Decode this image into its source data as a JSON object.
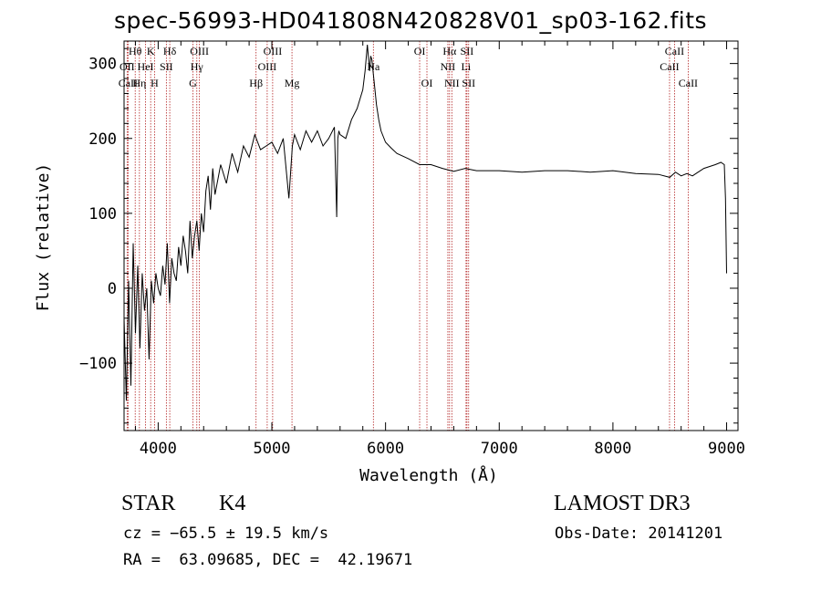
{
  "title": "spec-56993-HD041808N420828V01_sp03-162.fits",
  "info": {
    "object_type": "STAR",
    "subclass": "K4",
    "survey": "LAMOST DR3",
    "redshift": "cz = −65.5 ± 19.5 km/s",
    "obs_date": "Obs-Date: 20141201",
    "coords": "RA =  63.09685, DEC =  42.19671"
  },
  "colors": {
    "line": "#000000",
    "marker": "#b22222",
    "background": "#ffffff"
  },
  "chart_data": {
    "type": "line",
    "title": "spec-56993-HD041808N420828V01_sp03-162.fits",
    "xlabel": "Wavelength (Å)",
    "ylabel": "Flux (relative)",
    "xlim": [
      3700,
      9100
    ],
    "ylim": [
      -190,
      330
    ],
    "xticks": [
      4000,
      5000,
      6000,
      7000,
      8000,
      9000
    ],
    "yticks": [
      -100,
      0,
      100,
      200,
      300
    ],
    "ytick_labels": [
      "−100",
      "0",
      "100",
      "200",
      "300"
    ],
    "grid": false,
    "series": [
      {
        "x": [
          3700,
          3720,
          3740,
          3760,
          3780,
          3800,
          3820,
          3840,
          3860,
          3880,
          3900,
          3920,
          3940,
          3960,
          3980,
          4000,
          4020,
          4040,
          4060,
          4080,
          4100,
          4120,
          4140,
          4160,
          4180,
          4200,
          4220,
          4240,
          4260,
          4280,
          4300,
          4320,
          4340,
          4360,
          4380,
          4400,
          4420,
          4440,
          4460,
          4480,
          4500,
          4550,
          4600,
          4650,
          4700,
          4750,
          4800,
          4850,
          4900,
          4950,
          5000,
          5050,
          5100,
          5150,
          5180,
          5200,
          5250,
          5300,
          5350,
          5400,
          5450,
          5500,
          5550,
          5570,
          5580,
          5590,
          5600,
          5650,
          5700,
          5750,
          5800,
          5820,
          5840,
          5860,
          5870,
          5880,
          5890,
          5900,
          5920,
          5940,
          5960,
          6000,
          6050,
          6100,
          6200,
          6300,
          6400,
          6500,
          6600,
          6700,
          6800,
          6900,
          7000,
          7200,
          7400,
          7600,
          7800,
          8000,
          8200,
          8400,
          8500,
          8550,
          8600,
          8650,
          8700,
          8800,
          8900,
          8950,
          8980,
          8990,
          9000
        ],
        "y": [
          -40,
          -150,
          10,
          -130,
          60,
          -60,
          30,
          -80,
          20,
          -30,
          0,
          -95,
          10,
          -20,
          20,
          0,
          -10,
          30,
          5,
          60,
          -20,
          40,
          20,
          10,
          55,
          30,
          70,
          50,
          20,
          90,
          40,
          70,
          90,
          50,
          100,
          75,
          130,
          150,
          105,
          160,
          125,
          165,
          140,
          180,
          155,
          190,
          175,
          205,
          185,
          190,
          195,
          180,
          200,
          120,
          190,
          205,
          185,
          210,
          195,
          210,
          190,
          200,
          215,
          95,
          200,
          210,
          205,
          200,
          225,
          240,
          265,
          290,
          325,
          290,
          310,
          305,
          290,
          275,
          245,
          225,
          210,
          195,
          187,
          180,
          173,
          165,
          165,
          160,
          156,
          160,
          157,
          157,
          157,
          155,
          157,
          157,
          155,
          157,
          153,
          152,
          148,
          155,
          150,
          153,
          150,
          160,
          165,
          168,
          165,
          120,
          20
        ]
      }
    ],
    "lines": [
      {
        "name": "Hθ",
        "x": 3798,
        "row": 1
      },
      {
        "name": "OII",
        "x": 3727,
        "row": 2
      },
      {
        "name": "CaII",
        "x": 3735,
        "row": 3
      },
      {
        "name": "K",
        "x": 3934,
        "row": 1
      },
      {
        "name": "HeI",
        "x": 3889,
        "row": 2
      },
      {
        "name": "Hη",
        "x": 3835,
        "row": 3
      },
      {
        "name": "H",
        "x": 3968,
        "row": 3
      },
      {
        "name": "Hδ",
        "x": 4102,
        "row": 1
      },
      {
        "name": "SII",
        "x": 4072,
        "row": 2
      },
      {
        "name": "OIII",
        "x": 4363,
        "row": 1
      },
      {
        "name": "Hγ",
        "x": 4340,
        "row": 2
      },
      {
        "name": "G",
        "x": 4305,
        "row": 3
      },
      {
        "name": "Hβ",
        "x": 4861,
        "row": 3
      },
      {
        "name": "OIII",
        "x": 5007,
        "row": 1
      },
      {
        "name": "OIII",
        "x": 4959,
        "row": 2
      },
      {
        "name": "Mg",
        "x": 5177,
        "row": 3
      },
      {
        "name": "Na",
        "x": 5893,
        "row": 2
      },
      {
        "name": "OI",
        "x": 6300,
        "row": 1
      },
      {
        "name": "OI",
        "x": 6364,
        "row": 3
      },
      {
        "name": "Hα",
        "x": 6563,
        "row": 1
      },
      {
        "name": "SII",
        "x": 6716,
        "row": 1
      },
      {
        "name": "NII",
        "x": 6548,
        "row": 2
      },
      {
        "name": "Li",
        "x": 6708,
        "row": 2
      },
      {
        "name": "NII",
        "x": 6583,
        "row": 3
      },
      {
        "name": "SII",
        "x": 6731,
        "row": 3
      },
      {
        "name": "CaII",
        "x": 8542,
        "row": 1
      },
      {
        "name": "CaII",
        "x": 8498,
        "row": 2
      },
      {
        "name": "CaII",
        "x": 8662,
        "row": 3
      }
    ]
  }
}
